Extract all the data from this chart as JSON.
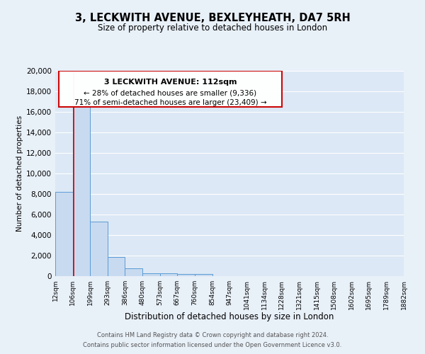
{
  "title": "3, LECKWITH AVENUE, BEXLEYHEATH, DA7 5RH",
  "subtitle": "Size of property relative to detached houses in London",
  "xlabel": "Distribution of detached houses by size in London",
  "ylabel": "Number of detached properties",
  "bar_color": "#c8daf0",
  "bar_edge_color": "#5b9bd5",
  "background_color": "#e8f0f8",
  "plot_bg_color": "#dce8f5",
  "grid_color": "#ffffff",
  "red_line_color": "#cc0000",
  "annotation_box_edge": "#cc0000",
  "annotation_title": "3 LECKWITH AVENUE: 112sqm",
  "annotation_line1": "← 28% of detached houses are smaller (9,336)",
  "annotation_line2": "71% of semi-detached houses are larger (23,409) →",
  "red_line_x": 112,
  "bin_edges": [
    12,
    106,
    199,
    293,
    386,
    480,
    573,
    667,
    760,
    854,
    947,
    1041,
    1134,
    1228,
    1321,
    1415,
    1508,
    1602,
    1695,
    1789,
    1882
  ],
  "bin_labels": [
    "12sqm",
    "106sqm",
    "199sqm",
    "293sqm",
    "386sqm",
    "480sqm",
    "573sqm",
    "667sqm",
    "760sqm",
    "854sqm",
    "947sqm",
    "1041sqm",
    "1134sqm",
    "1228sqm",
    "1321sqm",
    "1415sqm",
    "1508sqm",
    "1602sqm",
    "1695sqm",
    "1789sqm",
    "1882sqm"
  ],
  "counts": [
    8200,
    16600,
    5300,
    1850,
    750,
    280,
    250,
    200,
    180,
    0,
    0,
    0,
    0,
    0,
    0,
    0,
    0,
    0,
    0,
    0
  ],
  "ylim": [
    0,
    20000
  ],
  "yticks": [
    0,
    2000,
    4000,
    6000,
    8000,
    10000,
    12000,
    14000,
    16000,
    18000,
    20000
  ],
  "footer_line1": "Contains HM Land Registry data © Crown copyright and database right 2024.",
  "footer_line2": "Contains public sector information licensed under the Open Government Licence v3.0."
}
